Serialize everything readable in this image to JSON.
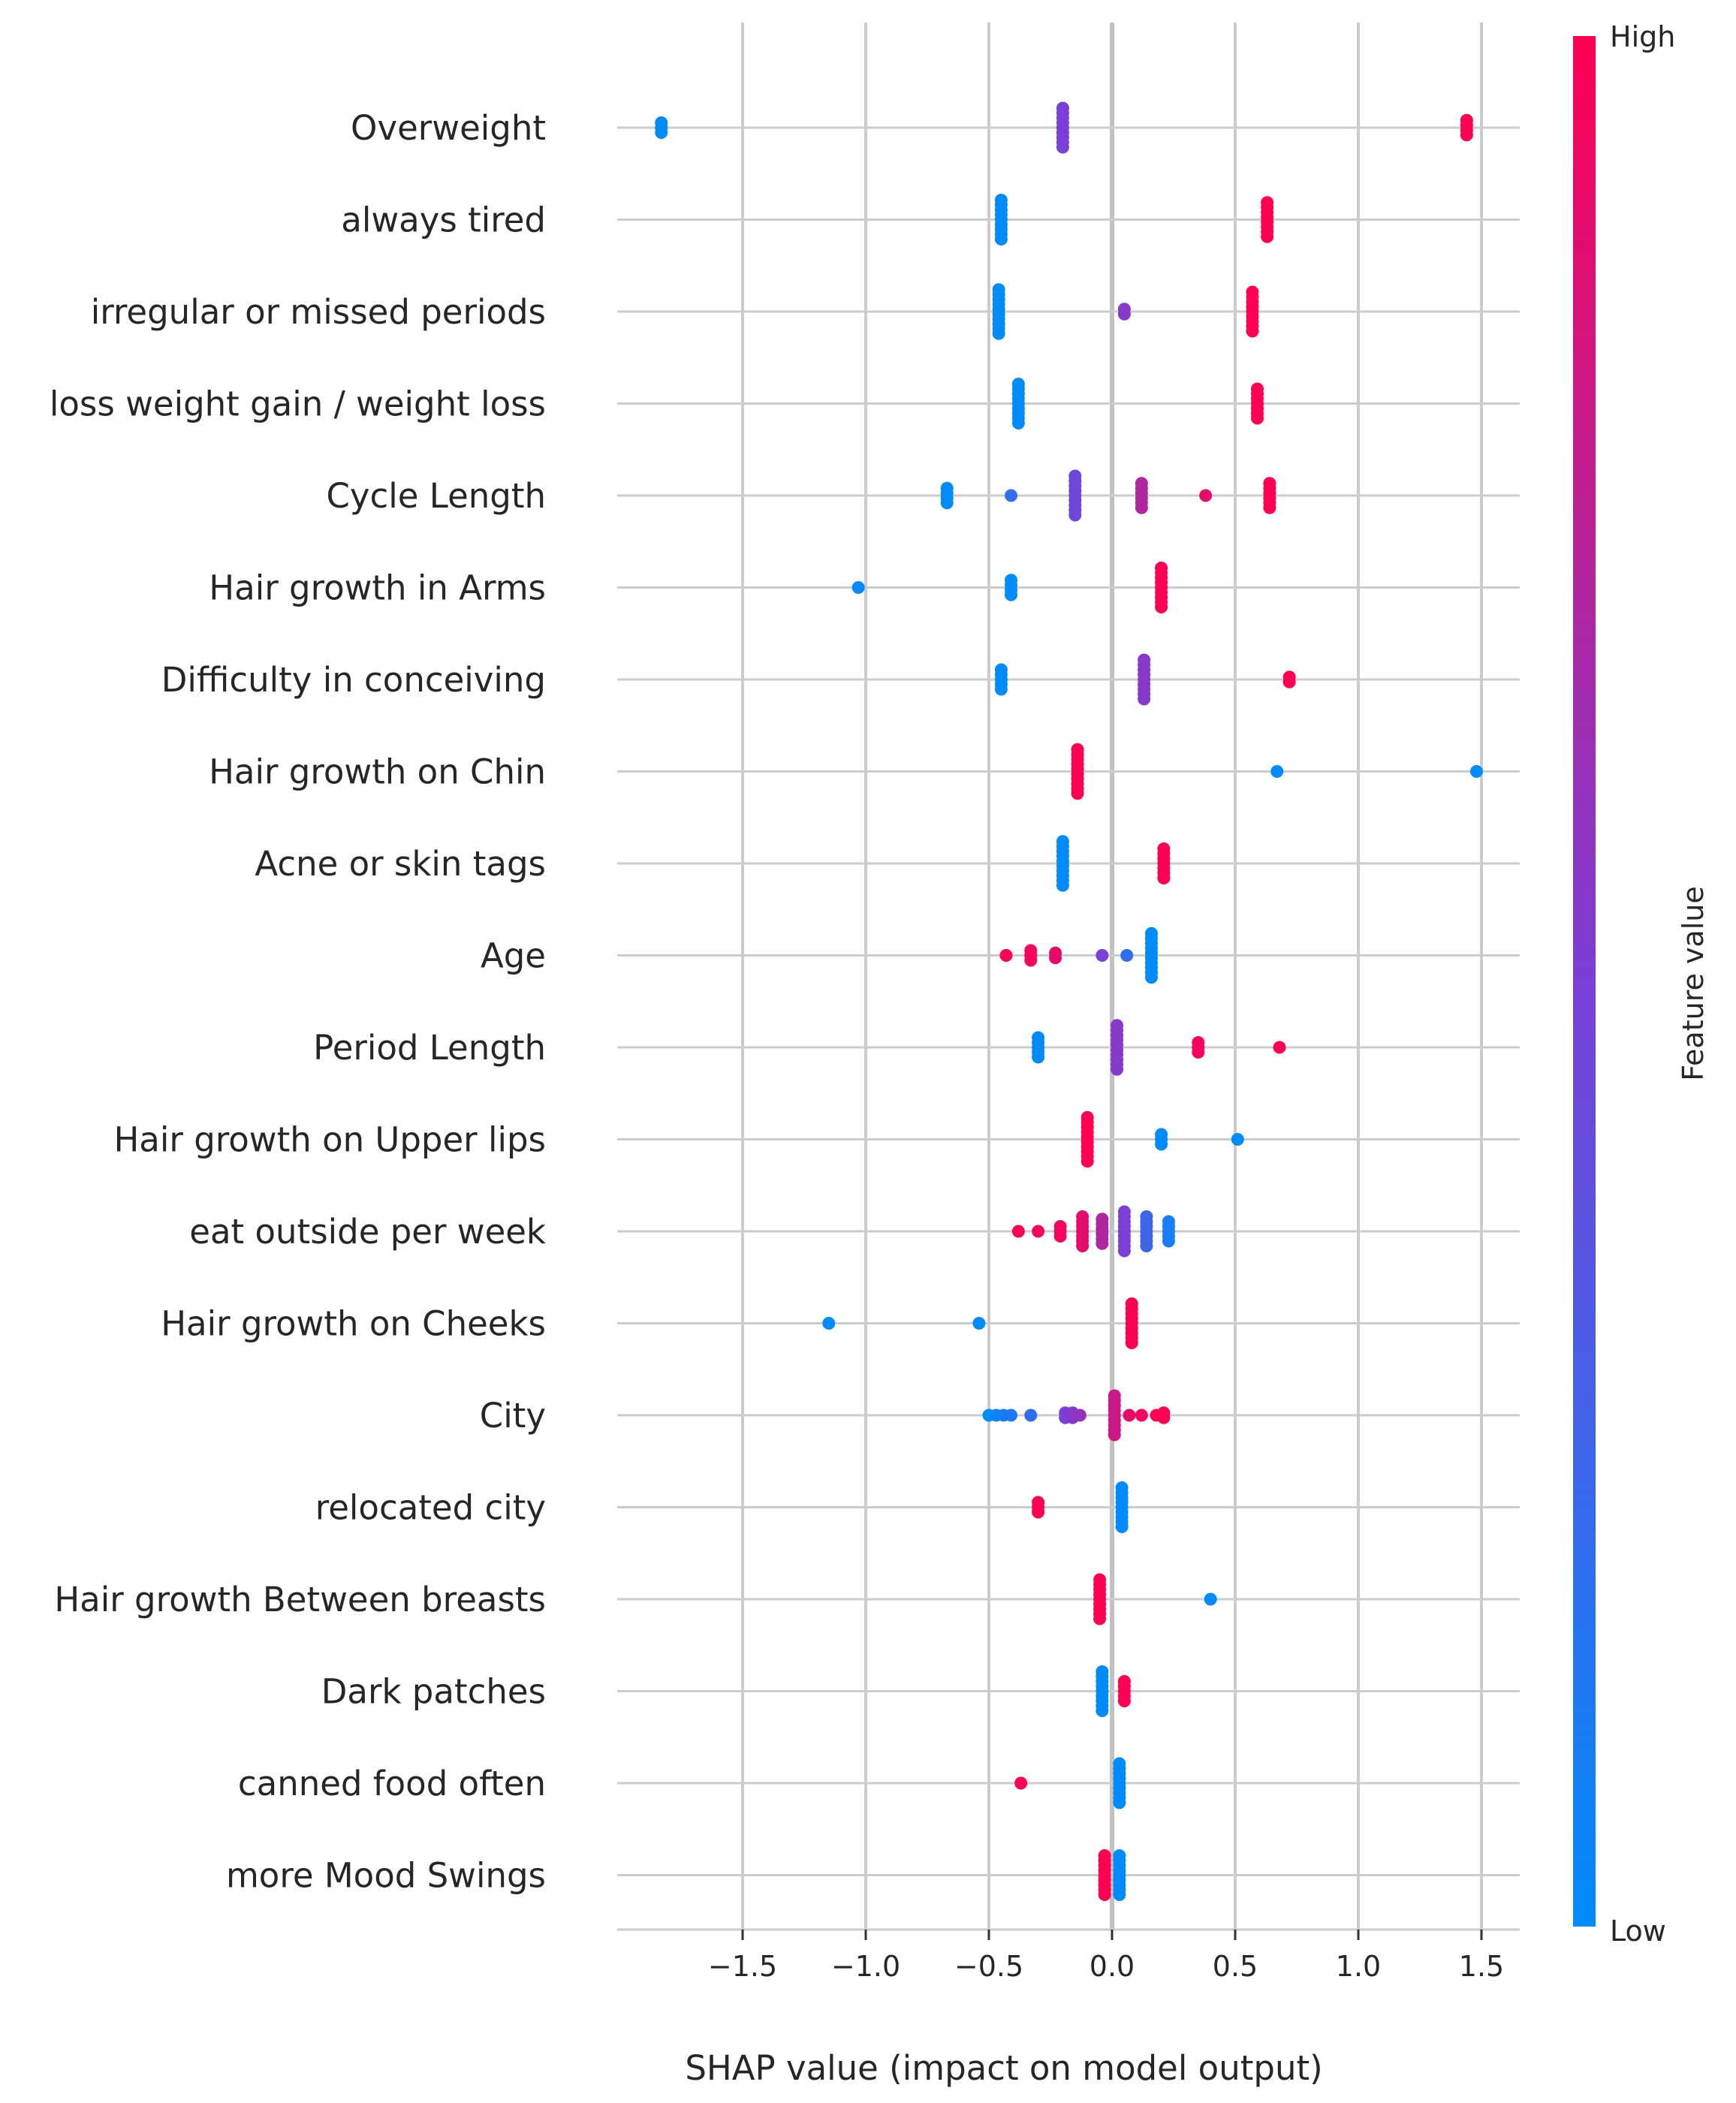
{
  "chart_data": {
    "type": "scatter",
    "subtype": "shap-summary-beeswarm",
    "xlabel": "SHAP value (impact on model output)",
    "xlim": [
      -2.0,
      1.65
    ],
    "xticks": [
      -1.5,
      -1.0,
      -0.5,
      0.0,
      0.5,
      1.0,
      1.5
    ],
    "xtick_labels": [
      "−1.5",
      "−1.0",
      "−0.5",
      "0.0",
      "0.5",
      "1.0",
      "1.5"
    ],
    "grid": true,
    "colorbar": {
      "title": "Feature value",
      "high_label": "High",
      "low_label": "Low",
      "low_color": "#008bfb",
      "high_color": "#ff0052"
    },
    "features": [
      {
        "name": "Overweight",
        "points": [
          {
            "x": -1.83,
            "v": 0.0,
            "n": 3
          },
          {
            "x": -0.2,
            "v": 0.5,
            "n": 9
          },
          {
            "x": 1.44,
            "v": 1.0,
            "n": 4
          }
        ]
      },
      {
        "name": "always tired",
        "points": [
          {
            "x": -0.45,
            "v": 0.0,
            "n": 9
          },
          {
            "x": 0.63,
            "v": 1.0,
            "n": 8
          }
        ]
      },
      {
        "name": "irregular or missed periods",
        "points": [
          {
            "x": -0.46,
            "v": 0.0,
            "n": 10
          },
          {
            "x": 0.05,
            "v": 0.55,
            "n": 2
          },
          {
            "x": 0.57,
            "v": 1.0,
            "n": 9
          }
        ]
      },
      {
        "name": "loss weight gain / weight loss",
        "points": [
          {
            "x": -0.38,
            "v": 0.0,
            "n": 9
          },
          {
            "x": 0.59,
            "v": 1.0,
            "n": 7
          }
        ]
      },
      {
        "name": "Cycle Length",
        "points": [
          {
            "x": -0.67,
            "v": 0.0,
            "n": 4
          },
          {
            "x": -0.41,
            "v": 0.2,
            "n": 1
          },
          {
            "x": -0.15,
            "v": 0.45,
            "n": 9
          },
          {
            "x": 0.12,
            "v": 0.7,
            "n": 6
          },
          {
            "x": 0.38,
            "v": 0.9,
            "n": 1
          },
          {
            "x": 0.64,
            "v": 1.0,
            "n": 6
          }
        ]
      },
      {
        "name": "Hair growth in Arms",
        "points": [
          {
            "x": -1.03,
            "v": 0.0,
            "n": 1
          },
          {
            "x": -0.41,
            "v": 0.0,
            "n": 4
          },
          {
            "x": 0.2,
            "v": 1.0,
            "n": 9
          }
        ]
      },
      {
        "name": "Difficulty in conceiving",
        "points": [
          {
            "x": -0.45,
            "v": 0.0,
            "n": 5
          },
          {
            "x": 0.13,
            "v": 0.55,
            "n": 9
          },
          {
            "x": 0.72,
            "v": 1.0,
            "n": 2
          }
        ]
      },
      {
        "name": "Hair growth on Chin",
        "points": [
          {
            "x": -0.14,
            "v": 1.0,
            "n": 10
          },
          {
            "x": 0.67,
            "v": 0.0,
            "n": 1
          },
          {
            "x": 1.48,
            "v": 0.0,
            "n": 1
          }
        ]
      },
      {
        "name": "Acne or skin tags",
        "points": [
          {
            "x": -0.2,
            "v": 0.0,
            "n": 10
          },
          {
            "x": 0.21,
            "v": 1.0,
            "n": 7
          }
        ]
      },
      {
        "name": "Age",
        "points": [
          {
            "x": -0.43,
            "v": 1.0,
            "n": 1
          },
          {
            "x": -0.33,
            "v": 0.95,
            "n": 3
          },
          {
            "x": -0.23,
            "v": 0.9,
            "n": 2
          },
          {
            "x": -0.04,
            "v": 0.5,
            "n": 1
          },
          {
            "x": 0.06,
            "v": 0.2,
            "n": 1
          },
          {
            "x": 0.16,
            "v": 0.0,
            "n": 10
          }
        ]
      },
      {
        "name": "Period Length",
        "points": [
          {
            "x": -0.3,
            "v": 0.0,
            "n": 5
          },
          {
            "x": 0.02,
            "v": 0.55,
            "n": 10
          },
          {
            "x": 0.35,
            "v": 0.95,
            "n": 3
          },
          {
            "x": 0.68,
            "v": 1.0,
            "n": 1
          }
        ]
      },
      {
        "name": "Hair growth  on Upper lips",
        "points": [
          {
            "x": -0.1,
            "v": 1.0,
            "n": 10
          },
          {
            "x": 0.2,
            "v": 0.0,
            "n": 3
          },
          {
            "x": 0.51,
            "v": 0.0,
            "n": 1
          }
        ]
      },
      {
        "name": "eat outside per week",
        "points": [
          {
            "x": -0.38,
            "v": 1.0,
            "n": 1
          },
          {
            "x": -0.3,
            "v": 0.95,
            "n": 1
          },
          {
            "x": -0.21,
            "v": 0.95,
            "n": 3
          },
          {
            "x": -0.12,
            "v": 0.9,
            "n": 7
          },
          {
            "x": -0.04,
            "v": 0.7,
            "n": 6
          },
          {
            "x": 0.05,
            "v": 0.5,
            "n": 9
          },
          {
            "x": 0.14,
            "v": 0.25,
            "n": 7
          },
          {
            "x": 0.23,
            "v": 0.1,
            "n": 5
          }
        ]
      },
      {
        "name": "Hair growth  on Cheeks",
        "points": [
          {
            "x": -1.15,
            "v": 0.0,
            "n": 1
          },
          {
            "x": -0.54,
            "v": 0.0,
            "n": 1
          },
          {
            "x": 0.08,
            "v": 1.0,
            "n": 9
          }
        ]
      },
      {
        "name": "City",
        "points": [
          {
            "x": -0.5,
            "v": 0.0,
            "n": 1
          },
          {
            "x": -0.47,
            "v": 0.05,
            "n": 1
          },
          {
            "x": -0.44,
            "v": 0.1,
            "n": 1
          },
          {
            "x": -0.41,
            "v": 0.12,
            "n": 1
          },
          {
            "x": -0.33,
            "v": 0.2,
            "n": 1
          },
          {
            "x": -0.19,
            "v": 0.5,
            "n": 2
          },
          {
            "x": -0.16,
            "v": 0.55,
            "n": 2
          },
          {
            "x": -0.13,
            "v": 0.6,
            "n": 1
          },
          {
            "x": 0.01,
            "v": 0.8,
            "n": 9
          },
          {
            "x": 0.07,
            "v": 0.9,
            "n": 1
          },
          {
            "x": 0.12,
            "v": 0.95,
            "n": 1
          },
          {
            "x": 0.18,
            "v": 1.0,
            "n": 1
          },
          {
            "x": 0.21,
            "v": 1.0,
            "n": 2
          }
        ]
      },
      {
        "name": "relocated city",
        "points": [
          {
            "x": -0.3,
            "v": 1.0,
            "n": 3
          },
          {
            "x": 0.04,
            "v": 0.0,
            "n": 9
          }
        ]
      },
      {
        "name": "Hair growth Between breasts",
        "points": [
          {
            "x": -0.05,
            "v": 1.0,
            "n": 9
          },
          {
            "x": 0.4,
            "v": 0.0,
            "n": 1
          }
        ]
      },
      {
        "name": "Dark patches",
        "points": [
          {
            "x": -0.04,
            "v": 0.0,
            "n": 9
          },
          {
            "x": 0.05,
            "v": 1.0,
            "n": 5
          }
        ]
      },
      {
        "name": "canned food often",
        "points": [
          {
            "x": -0.37,
            "v": 1.0,
            "n": 1
          },
          {
            "x": 0.03,
            "v": 0.0,
            "n": 9
          }
        ]
      },
      {
        "name": "more Mood Swings",
        "points": [
          {
            "x": -0.03,
            "v": 1.0,
            "n": 9
          },
          {
            "x": 0.03,
            "v": 0.0,
            "n": 9
          }
        ]
      }
    ]
  }
}
